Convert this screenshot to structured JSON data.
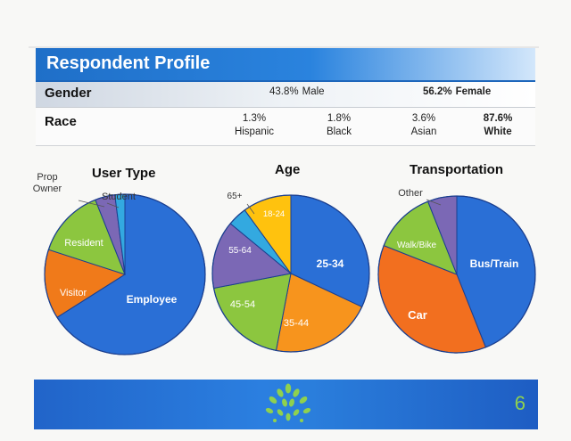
{
  "header": {
    "title": "Respondent Profile"
  },
  "gender": {
    "label": "Gender",
    "male": {
      "pct": "43.8%",
      "name": "Male"
    },
    "female": {
      "pct": "56.2%",
      "name": "Female"
    }
  },
  "race": {
    "label": "Race",
    "items": [
      {
        "pct": "1.3%",
        "name": "Hispanic"
      },
      {
        "pct": "1.8%",
        "name": "Black"
      },
      {
        "pct": "3.6%",
        "name": "Asian"
      },
      {
        "pct": "87.6%",
        "name": "White"
      }
    ]
  },
  "chart_data": [
    {
      "type": "pie",
      "title": "User Type",
      "slices": [
        {
          "label": "Employee",
          "value": 66,
          "color": "#2a6fd6"
        },
        {
          "label": "Visitor",
          "value": 14,
          "color": "#f07a1a"
        },
        {
          "label": "Resident",
          "value": 14,
          "color": "#8cc63f"
        },
        {
          "label": "Prop Owner",
          "value": 4,
          "color": "#7b68b5"
        },
        {
          "label": "Student",
          "value": 2,
          "color": "#33a9e0"
        }
      ]
    },
    {
      "type": "pie",
      "title": "Age",
      "slices": [
        {
          "label": "25-34",
          "value": 32,
          "color": "#2a6fd6"
        },
        {
          "label": "35-44",
          "value": 21,
          "color": "#f7941d"
        },
        {
          "label": "45-54",
          "value": 19,
          "color": "#8cc63f"
        },
        {
          "label": "55-64",
          "value": 14,
          "color": "#7b68b5"
        },
        {
          "label": "65+",
          "value": 4,
          "color": "#33a9e0"
        },
        {
          "label": "18-24",
          "value": 10,
          "color": "#ffc20e"
        }
      ]
    },
    {
      "type": "pie",
      "title": "Transportation",
      "slices": [
        {
          "label": "Bus/Train",
          "value": 44,
          "color": "#2a6fd6"
        },
        {
          "label": "Car",
          "value": 37,
          "color": "#f26f1f"
        },
        {
          "label": "Walk/Bike",
          "value": 13,
          "color": "#8cc63f"
        },
        {
          "label": "Other",
          "value": 6,
          "color": "#7b68b5"
        }
      ]
    }
  ],
  "footer": {
    "page_number": "6"
  },
  "colors": {
    "title_bar": "#2a83de",
    "footer": "#2b7fe0",
    "page_number": "#8fd14f"
  }
}
